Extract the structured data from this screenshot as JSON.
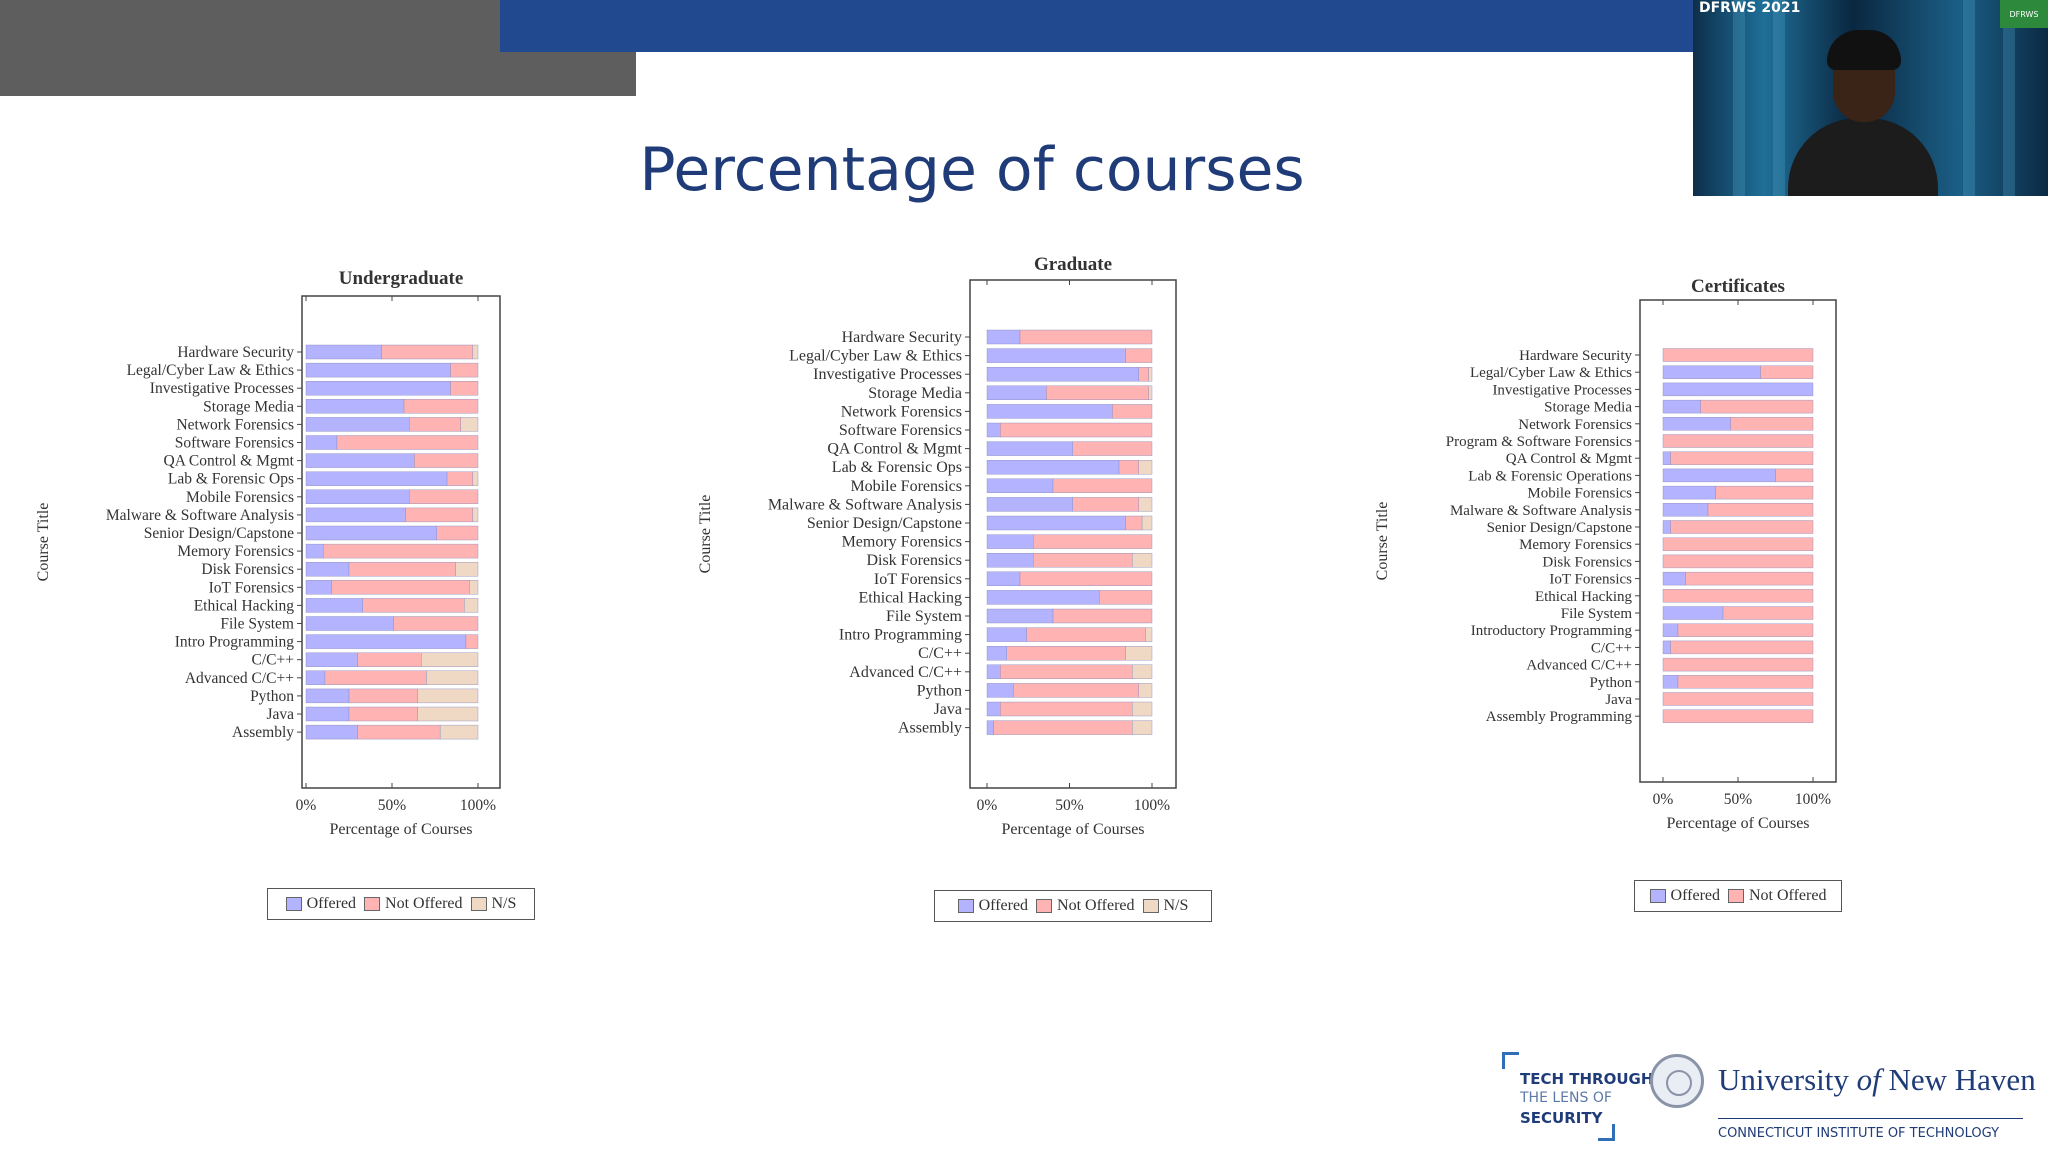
{
  "slide": {
    "title": "Percentage of courses"
  },
  "colors": {
    "offered": "#b3b3ff",
    "not_offered": "#ffb3b3",
    "ns": "#efd8c4",
    "title_blue": "#1f3b78",
    "topbar_blue": "#20498f"
  },
  "legend_labels": {
    "offered": "Offered",
    "not_offered": "Not Offered",
    "ns": "N/S"
  },
  "chart_data": [
    {
      "type": "bar",
      "orientation": "horizontal",
      "stacked": true,
      "title": "Undergraduate",
      "xlabel": "Percentage of Courses",
      "ylabel": "Course Title",
      "xlim": [
        0,
        100
      ],
      "xticks": [
        "0%",
        "50%",
        "100%"
      ],
      "legend": "bottom",
      "categories": [
        "Hardware Security",
        "Legal/Cyber Law & Ethics",
        "Investigative Processes",
        "Storage Media",
        "Network Forensics",
        "Software Forensics",
        "QA Control & Mgmt",
        "Lab & Forensic Ops",
        "Mobile Forensics",
        "Malware & Software Analysis",
        "Senior Design/Capstone",
        "Memory Forensics",
        "Disk Forensics",
        "IoT Forensics",
        "Ethical Hacking",
        "File System",
        "Intro Programming",
        "C/C++",
        "Advanced C/C++",
        "Python",
        "Java",
        "Assembly"
      ],
      "series": [
        {
          "name": "Offered",
          "values": [
            44,
            84,
            84,
            57,
            60,
            18,
            63,
            82,
            60,
            58,
            76,
            10,
            25,
            15,
            33,
            51,
            93,
            30,
            11,
            25,
            25,
            30
          ]
        },
        {
          "name": "Not Offered",
          "values": [
            53,
            16,
            16,
            43,
            30,
            82,
            37,
            15,
            40,
            39,
            24,
            90,
            62,
            80,
            59,
            49,
            7,
            37,
            59,
            40,
            40,
            48
          ]
        },
        {
          "name": "N/S",
          "values": [
            3,
            0,
            0,
            0,
            10,
            0,
            0,
            3,
            0,
            3,
            0,
            0,
            13,
            5,
            8,
            0,
            0,
            33,
            30,
            35,
            35,
            22
          ]
        }
      ]
    },
    {
      "type": "bar",
      "orientation": "horizontal",
      "stacked": true,
      "title": "Graduate",
      "xlabel": "Percentage of Courses",
      "ylabel": "Course Title",
      "xlim": [
        0,
        100
      ],
      "xticks": [
        "0%",
        "50%",
        "100%"
      ],
      "legend": "bottom",
      "categories": [
        "Hardware Security",
        "Legal/Cyber Law & Ethics",
        "Investigative Processes",
        "Storage Media",
        "Network Forensics",
        "Software Forensics",
        "QA Control & Mgmt",
        "Lab & Forensic Ops",
        "Mobile Forensics",
        "Malware & Software Analysis",
        "Senior Design/Capstone",
        "Memory Forensics",
        "Disk Forensics",
        "IoT Forensics",
        "Ethical Hacking",
        "File System",
        "Intro Programming",
        "C/C++",
        "Advanced C/C++",
        "Python",
        "Java",
        "Assembly"
      ],
      "series": [
        {
          "name": "Offered",
          "values": [
            20,
            84,
            92,
            36,
            76,
            8,
            52,
            80,
            40,
            52,
            84,
            28,
            28,
            20,
            68,
            40,
            24,
            12,
            8,
            16,
            8,
            4
          ]
        },
        {
          "name": "Not Offered",
          "values": [
            80,
            16,
            6,
            62,
            24,
            92,
            48,
            12,
            60,
            40,
            10,
            72,
            60,
            80,
            32,
            60,
            72,
            72,
            80,
            76,
            80,
            84
          ]
        },
        {
          "name": "N/S",
          "values": [
            0,
            0,
            2,
            2,
            0,
            0,
            0,
            8,
            0,
            8,
            6,
            0,
            12,
            0,
            0,
            0,
            4,
            16,
            12,
            8,
            12,
            12
          ]
        }
      ]
    },
    {
      "type": "bar",
      "orientation": "horizontal",
      "stacked": true,
      "title": "Certificates",
      "xlabel": "Percentage of Courses",
      "ylabel": "Course Title",
      "xlim": [
        0,
        100
      ],
      "xticks": [
        "0%",
        "50%",
        "100%"
      ],
      "legend": "bottom",
      "categories": [
        "Hardware Security",
        "Legal/Cyber Law & Ethics",
        "Investigative Processes",
        "Storage Media",
        "Network Forensics",
        "Program & Software Forensics",
        "QA Control & Mgmt",
        "Lab & Forensic Operations",
        "Mobile Forensics",
        "Malware & Software Analysis",
        "Senior Design/Capstone",
        "Memory Forensics",
        "Disk Forensics",
        "IoT Forensics",
        "Ethical Hacking",
        "File System",
        "Introductory Programming",
        "C/C++",
        "Advanced C/C++",
        "Python",
        "Java",
        "Assembly Programming"
      ],
      "series": [
        {
          "name": "Offered",
          "values": [
            0,
            65,
            100,
            25,
            45,
            0,
            5,
            75,
            35,
            30,
            5,
            0,
            0,
            15,
            0,
            40,
            10,
            5,
            0,
            10,
            0,
            0
          ]
        },
        {
          "name": "Not Offered",
          "values": [
            100,
            35,
            0,
            75,
            55,
            100,
            95,
            25,
            65,
            70,
            95,
            100,
            100,
            85,
            100,
            60,
            90,
            95,
            100,
            90,
            100,
            100
          ]
        }
      ]
    }
  ],
  "footer": {
    "tech_line1": "TECH THROUGH",
    "tech_line2": "THE LENS OF",
    "tech_line3": "SECURITY",
    "uni_a": "University ",
    "uni_of": "of",
    "uni_b": " New Haven",
    "uni_sub": "CONNECTICUT INSTITUTE OF TECHNOLOGY"
  },
  "webcam": {
    "badge": "DFRWS 2021",
    "tag": "DFRWS"
  }
}
